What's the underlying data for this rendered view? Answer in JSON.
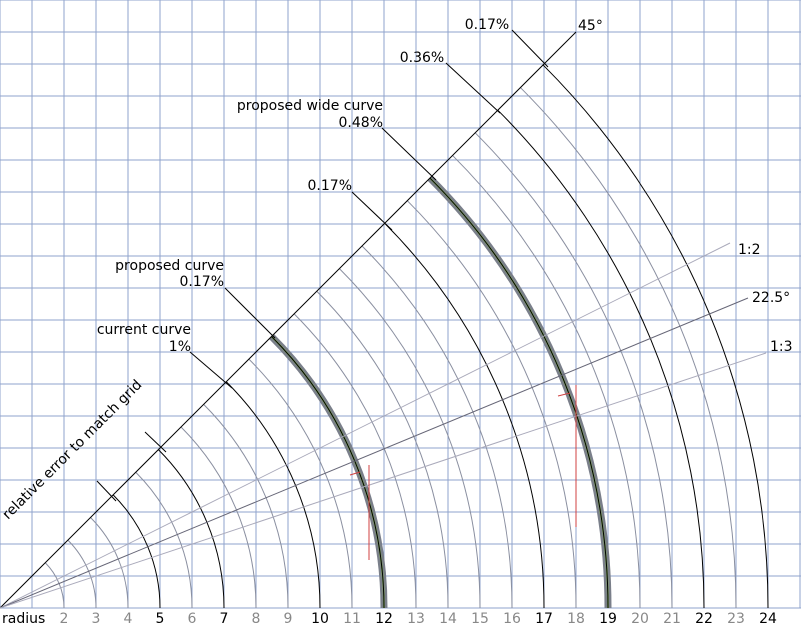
{
  "axis_label": "radius",
  "radius_ticks": [
    2,
    3,
    4,
    5,
    6,
    7,
    8,
    9,
    10,
    11,
    12,
    13,
    14,
    15,
    16,
    17,
    18,
    19,
    20,
    21,
    22,
    23,
    24
  ],
  "emphasized_radii": [
    5,
    7,
    10,
    12,
    17,
    19,
    22,
    24
  ],
  "proposed_radii": [
    12,
    19
  ],
  "angle_labels": {
    "deg45": "45°",
    "ratio12": "1:2",
    "deg22_5": "22.5°",
    "ratio13": "1:3"
  },
  "side_label": "relative error to match grid",
  "annotations": [
    {
      "lines": [
        "0.17%"
      ]
    },
    {
      "lines": [
        "0.36%"
      ]
    },
    {
      "lines": [
        "proposed wide curve",
        "0.48%"
      ]
    },
    {
      "lines": [
        "0.17%"
      ]
    },
    {
      "lines": [
        "proposed curve",
        "0.17%"
      ]
    },
    {
      "lines": [
        "current curve",
        "1%"
      ]
    }
  ]
}
